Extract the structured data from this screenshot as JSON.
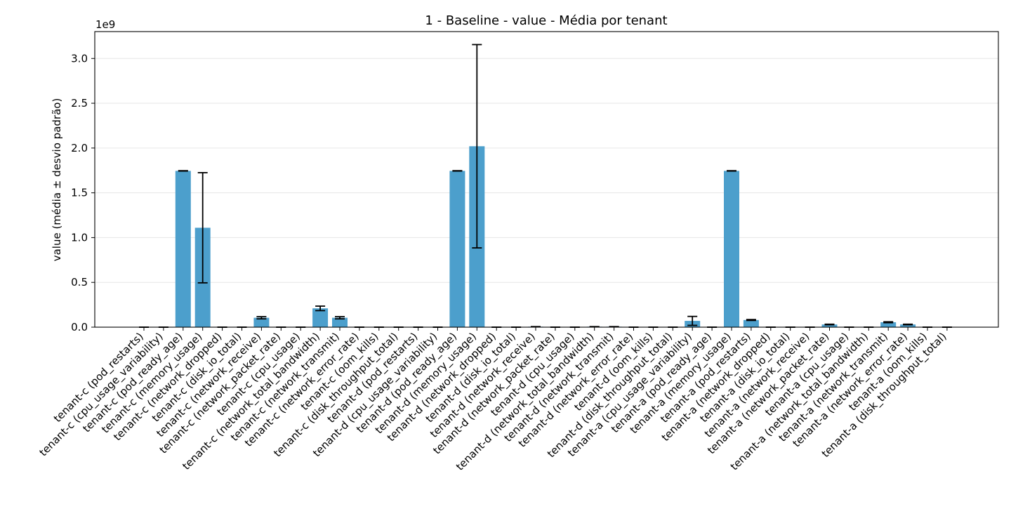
{
  "chart_data": {
    "type": "bar",
    "title": "1 - Baseline - value - Média por tenant",
    "xlabel": "",
    "ylabel": "value (média ± desvio padrão)",
    "y_offset_label": "1e9",
    "ylim": [
      0,
      3.3
    ],
    "yticks": [
      0.0,
      0.5,
      1.0,
      1.5,
      2.0,
      2.5,
      3.0
    ],
    "ytick_labels": [
      "0.0",
      "0.5",
      "1.0",
      "1.5",
      "2.0",
      "2.5",
      "3.0"
    ],
    "grid": "horizontal",
    "bar_color": "#4c9fcc",
    "error_color": "#000000",
    "categories": [
      "tenant-c (pod_restarts)",
      "tenant-c (cpu_usage_variability)",
      "tenant-c (pod_ready_age)",
      "tenant-c (memory_usage)",
      "tenant-c (network_dropped)",
      "tenant-c (disk_io_total)",
      "tenant-c (network_receive)",
      "tenant-c (network_packet_rate)",
      "tenant-c (cpu_usage)",
      "tenant-c (network_total_bandwidth)",
      "tenant-c (network_transmit)",
      "tenant-c (network_error_rate)",
      "tenant-c (oom_kills)",
      "tenant-c (disk_throughput_total)",
      "tenant-d (pod_restarts)",
      "tenant-d (cpu_usage_variability)",
      "tenant-d (pod_ready_age)",
      "tenant-d (memory_usage)",
      "tenant-d (network_dropped)",
      "tenant-d (disk_io_total)",
      "tenant-d (network_receive)",
      "tenant-d (network_packet_rate)",
      "tenant-d (cpu_usage)",
      "tenant-d (network_total_bandwidth)",
      "tenant-d (network_transmit)",
      "tenant-d (network_error_rate)",
      "tenant-d (oom_kills)",
      "tenant-d (disk_throughput_total)",
      "tenant-a (cpu_usage_variability)",
      "tenant-a (pod_ready_age)",
      "tenant-a (memory_usage)",
      "tenant-a (pod_restarts)",
      "tenant-a (network_dropped)",
      "tenant-a (disk_io_total)",
      "tenant-a (network_receive)",
      "tenant-a (network_packet_rate)",
      "tenant-a (cpu_usage)",
      "tenant-a (network_total_bandwidth)",
      "tenant-a (network_transmit)",
      "tenant-a (network_error_rate)",
      "tenant-a (oom_kills)",
      "tenant-a (disk_throughput_total)"
    ],
    "values": [
      0,
      0,
      1.745,
      1.11,
      0,
      0,
      0.105,
      0,
      0,
      0.21,
      0.105,
      0,
      0,
      0,
      0,
      0,
      1.745,
      2.02,
      0,
      0,
      0.005,
      0,
      0,
      0.005,
      0.005,
      0,
      0,
      0,
      0.07,
      0,
      1.745,
      0.08,
      0,
      0,
      0,
      0.03,
      0,
      0,
      0.055,
      0.03,
      0,
      0
    ],
    "errors": [
      0,
      0,
      0.002,
      0.615,
      0,
      0,
      0.012,
      0,
      0,
      0.025,
      0.012,
      0,
      0,
      0,
      0,
      0,
      0.002,
      1.135,
      0,
      0,
      0.001,
      0,
      0,
      0.001,
      0.001,
      0,
      0,
      0,
      0.05,
      0,
      0.002,
      0.005,
      0,
      0,
      0,
      0.003,
      0,
      0,
      0.005,
      0.003,
      0,
      0
    ]
  }
}
